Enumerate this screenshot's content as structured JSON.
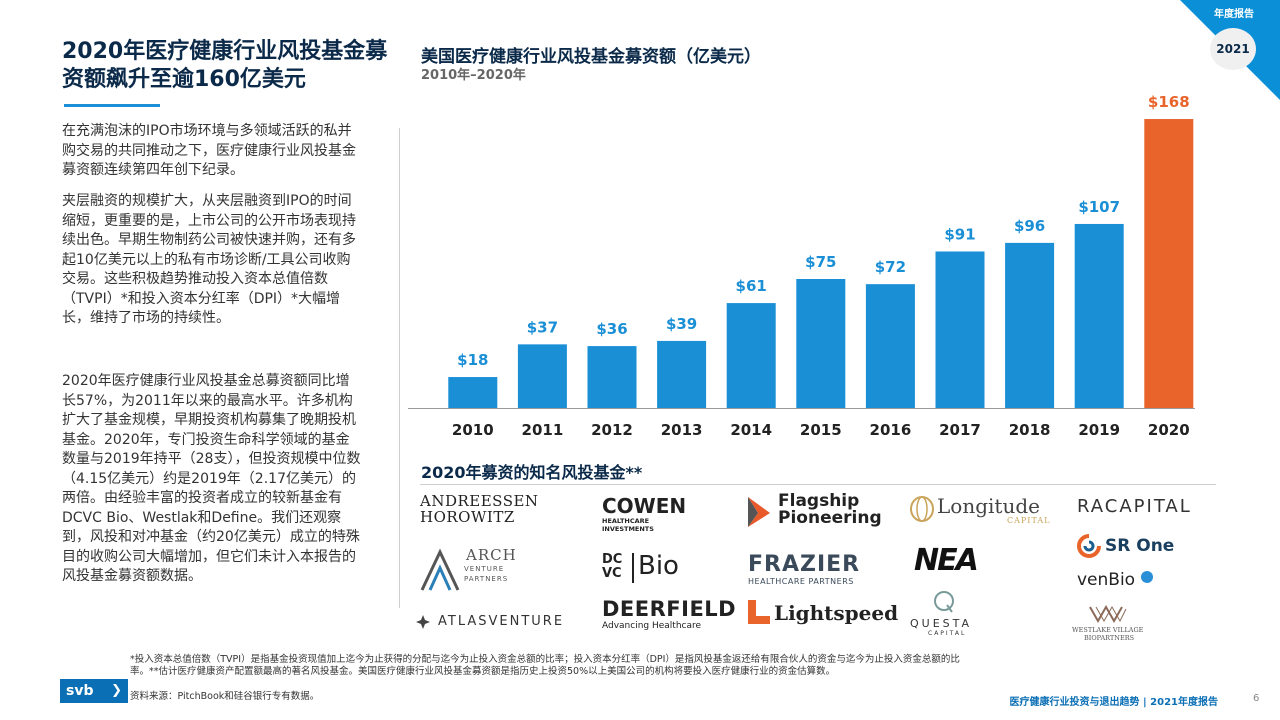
{
  "page_title": "2020年医疗健康行业风投基金募资额飙升至逾160亿美元",
  "paragraphs": [
    "在充满泡沫的IPO市场环境与多领域活跃的私并购交易的共同推动之下，医疗健康行业风投基金募资额连续第四年创下纪录。",
    "夹层融资的规模扩大，从夹层融资到IPO的时间缩短，更重要的是，上市公司的公开市场表现持续出色。早期生物制药公司被快速并购，还有多起10亿美元以上的私有市场诊断/工具公司收购交易。这些积极趋势推动投入资本总值倍数（TVPI）*和投入资本分红率（DPI）*大幅增长，维持了市场的持续性。",
    "2020年医疗健康行业风投基金总募资额同比增长57%，为2011年以来的最高水平。许多机构扩大了基金规模，早期投资机构募集了晚期投机基金。2020年，专门投资生命科学领域的基金数量与2019年持平（28支），但投资规模中位数（4.15亿美元）约是2019年（2.17亿美元）的两倍。由经验丰富的投资者成立的较新基金有DCVC Bio、Westlak和Define。我们还观察到，风投和对冲基金（约20亿美元）成立的特殊目的收购公司大幅增加，但它们未计入本报告的风投基金募资额数据。"
  ],
  "chart_data": {
    "type": "bar",
    "title": "美国医疗健康行业风投基金募资额（亿美元）",
    "subtitle": "2010年–2020年",
    "categories": [
      "2010",
      "2011",
      "2012",
      "2013",
      "2014",
      "2015",
      "2016",
      "2017",
      "2018",
      "2019",
      "2020"
    ],
    "values": [
      18,
      37,
      36,
      39,
      61,
      75,
      72,
      91,
      96,
      107,
      168
    ],
    "data_labels": [
      "$18",
      "$37",
      "$36",
      "$39",
      "$61",
      "$75",
      "$72",
      "$91",
      "$96",
      "$107",
      "$168"
    ],
    "highlight_category": "2020",
    "colors": {
      "bar": "#1a8fd6",
      "highlight": "#e8642a",
      "axis": "#999999"
    },
    "ylim": [
      0,
      175
    ],
    "xlabel": "",
    "ylabel": ""
  },
  "funds_title": "2020年募资的知名风投基金**",
  "logos": {
    "a16z": [
      "ANDREESSEN",
      "HOROWITZ"
    ],
    "cowen": [
      "COWEN",
      "HEALTHCARE",
      "INVESTMENTS"
    ],
    "flagship": [
      "Flagship",
      "Pioneering"
    ],
    "longitude": [
      "Longitude",
      "CAPITAL"
    ],
    "ra": "RACAPITAL",
    "arch": [
      "ARCH",
      "VENTURE",
      "PARTNERS"
    ],
    "dcvc": [
      "DC",
      "VC",
      "Bio"
    ],
    "frazier": [
      "FRAZIER",
      "HEALTHCARE PARTNERS"
    ],
    "nea": "NEA",
    "srone": "SR One",
    "venbio": "venBio",
    "atlas": "ATLASVENTURE",
    "deerfield": [
      "DEERFIELD",
      "Advancing Healthcare"
    ],
    "lightspeed": "Lightspeed",
    "questa": [
      "QUESTA",
      "CAPITAL"
    ],
    "westlake": [
      "WESTLAKE VILLAGE",
      "BIOPARTNERS"
    ]
  },
  "footnotes": [
    "*投入资本总值倍数（TVPI）是指基金投资现值加上迄今为止获得的分配与迄今为止投入资金总额的比率；投入资本分红率（DPI）是指风投基金返还给有限合伙人的资金与迄今为止投入资金总额的比率。**估计医疗健康资产配置额最高的著名风投基金。美国医疗健康行业风投基金募资额是指历史上投资50%以上美国公司的机构将要投入医疗健康行业的资金估算数。",
    "资料来源：PitchBook和硅谷银行专有数据。"
  ],
  "brand": {
    "name": "svb",
    "chevron": "❯"
  },
  "footer_text": "医疗健康行业投资与退出趋势 | 2021年度报告",
  "page_number": "6",
  "corner": {
    "label": "年度报告",
    "year": "2021"
  }
}
